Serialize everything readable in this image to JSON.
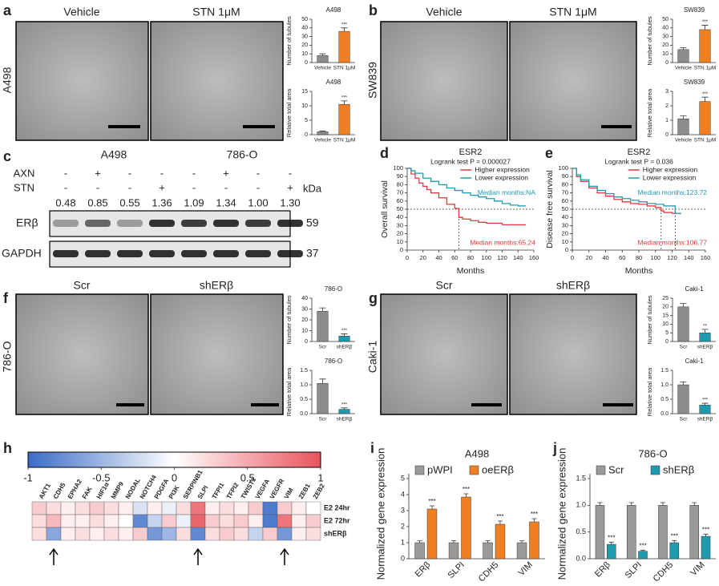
{
  "panel_labels": [
    "a",
    "b",
    "c",
    "d",
    "e",
    "f",
    "g",
    "h",
    "i",
    "j"
  ],
  "image_panels": [
    {
      "side": "A498",
      "labels": [
        "Vehicle",
        "STN 1μM"
      ]
    },
    {
      "side": "SW839",
      "labels": [
        "Vehicle",
        "STN 1μM"
      ]
    },
    {
      "side": "786-O",
      "labels": [
        "Scr",
        "shERβ"
      ]
    },
    {
      "side": "Caki-1",
      "labels": [
        "Scr",
        "shERβ"
      ]
    }
  ],
  "blot": {
    "cell_lines": [
      "A498",
      "786-O"
    ],
    "treatments": [
      {
        "name": "AXN",
        "signs": [
          "-",
          "+",
          "-",
          "-",
          "-",
          "+",
          "-",
          "-"
        ]
      },
      {
        "name": "STN",
        "signs": [
          "-",
          "-",
          "-",
          "+",
          "-",
          "-",
          "-",
          "+"
        ]
      }
    ],
    "ratios": [
      "0.48",
      "0.85",
      "0.55",
      "1.36",
      "1.09",
      "1.34",
      "1.00",
      "1.30"
    ],
    "unit": "kDa",
    "proteins": [
      {
        "name": "ERβ",
        "kda": 59
      },
      {
        "name": "GAPDH",
        "kda": 37
      }
    ]
  },
  "chart_data": [
    {
      "type": "bar",
      "title": "A498",
      "ylabel": "Number of tubules",
      "categories": [
        "Vehicle",
        "STN 1μM"
      ],
      "values": [
        8,
        36
      ],
      "errors": [
        2,
        4
      ],
      "colors": [
        "#8c8c8c",
        "#f07f22"
      ],
      "significance": "***",
      "ylim": [
        0,
        50
      ],
      "yticks": [
        0,
        10,
        20,
        30,
        40,
        50
      ]
    },
    {
      "type": "bar",
      "title": "A498",
      "ylabel": "Relative total area",
      "categories": [
        "Vehicle",
        "STN 1μM"
      ],
      "values": [
        1,
        10.5
      ],
      "errors": [
        0.3,
        1.2
      ],
      "colors": [
        "#8c8c8c",
        "#f07f22"
      ],
      "significance": "***",
      "ylim": [
        0,
        15
      ],
      "yticks": [
        0,
        5,
        10,
        15
      ]
    },
    {
      "type": "bar",
      "title": "SW839",
      "ylabel": "Number of tubules",
      "categories": [
        "Vehicle",
        "STN 1μM"
      ],
      "values": [
        15,
        38
      ],
      "errors": [
        2,
        5
      ],
      "colors": [
        "#8c8c8c",
        "#f07f22"
      ],
      "significance": "***",
      "ylim": [
        0,
        50
      ],
      "yticks": [
        0,
        10,
        20,
        30,
        40,
        50
      ]
    },
    {
      "type": "bar",
      "title": "SW839",
      "ylabel": "Relative total area",
      "categories": [
        "Vehicle",
        "STN 1μM"
      ],
      "values": [
        1.1,
        2.3
      ],
      "errors": [
        0.2,
        0.3
      ],
      "colors": [
        "#8c8c8c",
        "#f07f22"
      ],
      "significance": "***",
      "ylim": [
        0,
        3
      ],
      "yticks": [
        0,
        1,
        2,
        3
      ]
    },
    {
      "type": "km",
      "title": "ESR2",
      "subtitle": "Logrank test P = 0.000027",
      "xlabel": "Months",
      "ylabel": "Overall survival",
      "xlim": [
        0,
        160
      ],
      "xticks": [
        0,
        20,
        40,
        60,
        80,
        100,
        120,
        140,
        160
      ],
      "ylim": [
        0,
        100
      ],
      "yticks": [
        0,
        10,
        20,
        30,
        40,
        50,
        60,
        70,
        80,
        90,
        100
      ],
      "reference_y": 50,
      "median_x": [
        65.24
      ],
      "series": [
        {
          "name": "Higher expression",
          "color": "#e03a3e",
          "x": [
            0,
            5,
            10,
            15,
            20,
            25,
            30,
            40,
            50,
            60,
            65.24,
            70,
            80,
            90,
            100,
            120,
            140,
            150
          ],
          "values": [
            100,
            93,
            88,
            82,
            78,
            74,
            70,
            64,
            56,
            51,
            40,
            38,
            36,
            34,
            33,
            31,
            31,
            31
          ]
        },
        {
          "name": "Lower expression",
          "color": "#1f9bb0",
          "x": [
            0,
            5,
            10,
            20,
            30,
            40,
            50,
            60,
            70,
            80,
            90,
            100,
            110,
            120,
            130,
            140,
            150
          ],
          "values": [
            100,
            97,
            94,
            88,
            84,
            80,
            76,
            73,
            70,
            67,
            65,
            63,
            60,
            57,
            55,
            54,
            54
          ]
        }
      ],
      "annotations": [
        {
          "text": "Median months:NA",
          "color": "#1f9bb0"
        },
        {
          "text": "Median months:65.24",
          "color": "#e03a3e"
        }
      ]
    },
    {
      "type": "km",
      "title": "ESR2",
      "subtitle": "Logrank test P = 0.036",
      "xlabel": "Months",
      "ylabel": "Disease free survival",
      "xlim": [
        0,
        160
      ],
      "xticks": [
        0,
        20,
        40,
        60,
        80,
        100,
        120,
        140,
        160
      ],
      "ylim": [
        0,
        100
      ],
      "yticks": [
        0,
        10,
        20,
        30,
        40,
        50,
        60,
        70,
        80,
        90,
        100
      ],
      "reference_y": 50,
      "median_x": [
        106.77,
        123.72
      ],
      "series": [
        {
          "name": "Higher expression",
          "color": "#e03a3e",
          "x": [
            0,
            5,
            10,
            20,
            30,
            40,
            50,
            60,
            70,
            80,
            90,
            100,
            106.77,
            110,
            120,
            130
          ],
          "values": [
            100,
            90,
            84,
            76,
            70,
            66,
            62,
            59,
            57,
            56,
            54,
            52,
            48,
            46,
            45,
            45
          ]
        },
        {
          "name": "Lower expression",
          "color": "#1f9bb0",
          "x": [
            0,
            5,
            10,
            20,
            30,
            40,
            50,
            60,
            70,
            80,
            90,
            100,
            110,
            123.72,
            130
          ],
          "values": [
            100,
            92,
            86,
            78,
            73,
            69,
            65,
            63,
            61,
            59,
            57,
            56,
            54,
            45,
            44
          ]
        }
      ],
      "annotations": [
        {
          "text": "Median months:123.72",
          "color": "#1f9bb0"
        },
        {
          "text": "Median months:106.77",
          "color": "#e03a3e"
        }
      ]
    },
    {
      "type": "bar",
      "title": "786-O",
      "ylabel": "Number of tubules",
      "categories": [
        "Scr",
        "shERβ"
      ],
      "values": [
        28,
        5
      ],
      "errors": [
        3,
        2
      ],
      "colors": [
        "#8c8c8c",
        "#1f9bb0"
      ],
      "significance": "***",
      "ylim": [
        0,
        40
      ],
      "yticks": [
        0,
        10,
        20,
        30,
        40
      ]
    },
    {
      "type": "bar",
      "title": "786-O",
      "ylabel": "Relative total area",
      "categories": [
        "Scr",
        "shERβ"
      ],
      "values": [
        1.05,
        0.15
      ],
      "errors": [
        0.15,
        0.05
      ],
      "colors": [
        "#8c8c8c",
        "#1f9bb0"
      ],
      "significance": "***",
      "ylim": [
        0,
        1.5
      ],
      "yticks": [
        {
          "value": 0,
          "label": "0.0"
        },
        0.5,
        {
          "value": 1,
          "label": "1.0"
        },
        1.5
      ]
    },
    {
      "type": "bar",
      "title": "Caki-1",
      "ylabel": "Number of tubules",
      "categories": [
        "Scr",
        "shERβ"
      ],
      "values": [
        20,
        5
      ],
      "errors": [
        2,
        2
      ],
      "colors": [
        "#8c8c8c",
        "#1f9bb0"
      ],
      "significance": "**",
      "ylim": [
        0,
        25
      ],
      "yticks": [
        0,
        5,
        10,
        15,
        20,
        25
      ]
    },
    {
      "type": "bar",
      "title": "Caki-1",
      "ylabel": "Relative total area",
      "categories": [
        "Scr",
        "shERβ"
      ],
      "values": [
        1.0,
        0.3
      ],
      "errors": [
        0.1,
        0.06
      ],
      "colors": [
        "#8c8c8c",
        "#1f9bb0"
      ],
      "significance": "***",
      "ylim": [
        0,
        1.5
      ],
      "yticks": [
        {
          "value": 0,
          "label": "0.0"
        },
        0.5,
        {
          "value": 1,
          "label": "1.0"
        },
        1.5
      ]
    },
    {
      "type": "heatmap",
      "categories": [
        "AKT1",
        "CDH5",
        "EPHA2",
        "FAK",
        "HIF1α",
        "MMP9",
        "NODAL",
        "NOTCH4",
        "PDGFA",
        "PI3K",
        "SERPINB1",
        "SLPI",
        "TFPI1",
        "TFPI2",
        "TWIST1",
        "VEGFA",
        "VEGFR",
        "VIM",
        "ZEB1",
        "ZEB2"
      ],
      "rows": [
        "E2 24hr",
        "E2 72hr",
        "shERβ"
      ],
      "values": [
        [
          0.3,
          0.2,
          0.1,
          0.2,
          0.3,
          0.2,
          0.1,
          -0.2,
          0.1,
          -0.1,
          0.2,
          0.8,
          0.1,
          0.2,
          0.1,
          0.3,
          -0.9,
          0.3,
          0.1,
          0
        ],
        [
          0.2,
          0.4,
          0.1,
          0.1,
          0.2,
          0.1,
          0,
          -0.8,
          -0.3,
          0.3,
          -0.1,
          0.9,
          0.3,
          0.2,
          0.3,
          0.1,
          -0.9,
          0.8,
          0.1,
          0.3
        ],
        [
          0.2,
          -0.6,
          0.1,
          0.2,
          0.1,
          0.2,
          0.1,
          0.3,
          -0.7,
          -0.5,
          0.2,
          -0.8,
          0.2,
          0.3,
          0.2,
          -0.3,
          0.3,
          -0.7,
          0.1,
          0.2
        ]
      ],
      "clim": [
        -1,
        1
      ],
      "colorbar_ticks": [
        -1,
        -0.5,
        0,
        0.5,
        1
      ],
      "low_color": "#3a6cc6",
      "high_color": "#e8545c"
    },
    {
      "type": "grouped_bar",
      "title": "A498",
      "ylabel": "Normalized gene expression",
      "categories": [
        "ERβ",
        "SLPI",
        "CDH5",
        "VIM"
      ],
      "series": [
        {
          "name": "pWPI",
          "color": "#9a9a9a",
          "values": [
            1,
            1,
            1,
            1
          ],
          "errors": [
            0.12,
            0.12,
            0.12,
            0.12
          ]
        },
        {
          "name": "oeERβ",
          "color": "#f07f22",
          "values": [
            3.1,
            3.85,
            2.15,
            2.3
          ],
          "errors": [
            0.2,
            0.2,
            0.2,
            0.2
          ],
          "significance": "***"
        }
      ],
      "ylim": [
        0,
        5
      ],
      "yticks": [
        0,
        1,
        2,
        3,
        4,
        5
      ]
    },
    {
      "type": "grouped_bar",
      "title": "786-O",
      "ylabel": "Normalized gene expression",
      "categories": [
        "ERβ",
        "SLPI",
        "CDH5",
        "VIM"
      ],
      "series": [
        {
          "name": "Scr",
          "color": "#9a9a9a",
          "values": [
            1,
            1,
            1,
            1
          ],
          "errors": [
            0.05,
            0.05,
            0.05,
            0.05
          ]
        },
        {
          "name": "shERβ",
          "color": "#1f9bb0",
          "values": [
            0.27,
            0.14,
            0.3,
            0.42
          ],
          "errors": [
            0.04,
            0.02,
            0.04,
            0.04
          ],
          "significance": "***"
        }
      ],
      "ylim": [
        0,
        1.5
      ],
      "yticks": [
        {
          "value": 0,
          "label": "0.0"
        },
        0.5,
        {
          "value": 1,
          "label": "1.0"
        },
        1.5
      ]
    }
  ]
}
